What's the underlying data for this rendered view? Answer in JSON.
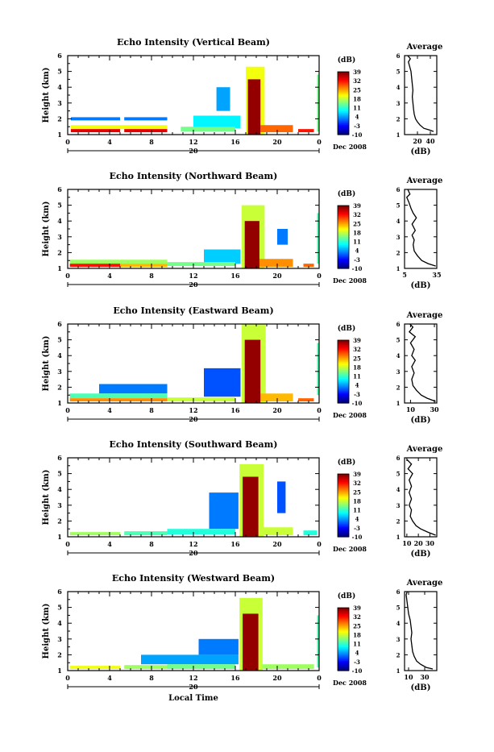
{
  "chart_data": [
    {
      "type": "heatmap",
      "title": "Echo Intensity (Vertical Beam)",
      "ylabel": "Height (km)",
      "ylim": [
        1,
        6
      ],
      "y_ticks": [
        "1",
        "2",
        "3",
        "4",
        "5",
        "6"
      ],
      "x_ticks": [
        "0",
        "4",
        "8",
        "12",
        "16",
        "20",
        "0"
      ],
      "xlim": [
        0,
        24
      ],
      "date_marker": "20",
      "date_label": "Dec 2008",
      "colorbar": {
        "unit": "(dB)",
        "ticks": [
          "39",
          "32",
          "25",
          "18",
          "11",
          "4",
          "-3",
          "-10"
        ]
      },
      "average": {
        "title": "Average",
        "xlabel": "(dB)",
        "xlim": [
          0,
          50
        ],
        "x_ticks": [
          "20",
          "40"
        ],
        "profile": [
          [
            45,
            1.2
          ],
          [
            38,
            1.3
          ],
          [
            30,
            1.4
          ],
          [
            24,
            1.6
          ],
          [
            20,
            1.8
          ],
          [
            17,
            2.0
          ],
          [
            15,
            2.3
          ],
          [
            14,
            2.6
          ],
          [
            13,
            3.0
          ],
          [
            12,
            3.4
          ],
          [
            13,
            3.8
          ],
          [
            12,
            4.2
          ],
          [
            11,
            4.6
          ],
          [
            10,
            5.0
          ],
          [
            8,
            5.3
          ],
          [
            6,
            5.6
          ],
          [
            9,
            5.8
          ],
          [
            5,
            6.0
          ]
        ]
      },
      "bands": [
        {
          "t0": 0.3,
          "t1": 5.0,
          "h0": 1.15,
          "h1": 1.35,
          "level": 34
        },
        {
          "t0": 5.4,
          "t1": 9.5,
          "h0": 1.15,
          "h1": 1.35,
          "level": 34
        },
        {
          "t0": 10.8,
          "t1": 16.0,
          "h0": 1.2,
          "h1": 1.5,
          "level": 14
        },
        {
          "t0": 0.3,
          "t1": 9.5,
          "h0": 1.35,
          "h1": 1.6,
          "level": 20
        },
        {
          "t0": 12.0,
          "t1": 16.5,
          "h0": 1.4,
          "h1": 2.2,
          "level": 8
        },
        {
          "t0": 17.2,
          "t1": 18.4,
          "h0": 1.0,
          "h1": 4.5,
          "level": 38
        },
        {
          "t0": 17.0,
          "t1": 18.8,
          "h0": 1.0,
          "h1": 5.3,
          "level": 20
        },
        {
          "t0": 18.4,
          "t1": 21.5,
          "h0": 1.15,
          "h1": 1.6,
          "level": 28
        },
        {
          "t0": 22.0,
          "t1": 23.5,
          "h0": 1.15,
          "h1": 1.35,
          "level": 32
        },
        {
          "t0": 0.3,
          "t1": 5.0,
          "h0": 1.9,
          "h1": 2.1,
          "level": 2
        },
        {
          "t0": 5.4,
          "t1": 9.5,
          "h0": 1.9,
          "h1": 2.1,
          "level": 2
        },
        {
          "t0": 14.2,
          "t1": 15.5,
          "h0": 2.5,
          "h1": 4.0,
          "level": 4
        },
        {
          "t0": 23.8,
          "t1": 24.0,
          "h0": 1.2,
          "h1": 4.8,
          "level": 14
        }
      ]
    },
    {
      "type": "heatmap",
      "title": "Echo Intensity (Northward Beam)",
      "ylabel": "Height (km)",
      "ylim": [
        1,
        6
      ],
      "y_ticks": [
        "1",
        "2",
        "3",
        "4",
        "5",
        "6"
      ],
      "x_ticks": [
        "0",
        "4",
        "8",
        "12",
        "16",
        "20",
        "0"
      ],
      "xlim": [
        0,
        24
      ],
      "date_marker": "20",
      "date_label": "Dec 2008",
      "colorbar": {
        "unit": "(dB)",
        "ticks": [
          "39",
          "32",
          "25",
          "18",
          "11",
          "4",
          "-3",
          "-10"
        ]
      },
      "average": {
        "title": "Average",
        "xlabel": "(dB)",
        "xlim": [
          5,
          35
        ],
        "x_ticks": [
          "5",
          "35"
        ],
        "profile": [
          [
            34,
            1.15
          ],
          [
            27,
            1.3
          ],
          [
            21,
            1.5
          ],
          [
            17,
            1.8
          ],
          [
            14,
            2.1
          ],
          [
            13,
            2.5
          ],
          [
            14,
            2.8
          ],
          [
            12,
            3.1
          ],
          [
            15,
            3.4
          ],
          [
            12,
            3.8
          ],
          [
            16,
            4.2
          ],
          [
            13,
            4.5
          ],
          [
            11,
            4.8
          ],
          [
            9,
            5.2
          ],
          [
            7,
            5.5
          ],
          [
            10,
            5.7
          ],
          [
            8,
            6.0
          ]
        ]
      },
      "bands": [
        {
          "t0": 0.2,
          "t1": 5.0,
          "h0": 1.1,
          "h1": 1.3,
          "level": 32
        },
        {
          "t0": 5.0,
          "t1": 9.5,
          "h0": 1.1,
          "h1": 1.3,
          "level": 24
        },
        {
          "t0": 9.5,
          "t1": 16.0,
          "h0": 1.15,
          "h1": 1.4,
          "level": 14
        },
        {
          "t0": 0.2,
          "t1": 9.5,
          "h0": 1.3,
          "h1": 1.55,
          "level": 16
        },
        {
          "t0": 13.0,
          "t1": 16.5,
          "h0": 1.3,
          "h1": 2.2,
          "level": 6
        },
        {
          "t0": 16.9,
          "t1": 18.3,
          "h0": 1.0,
          "h1": 4.0,
          "level": 38
        },
        {
          "t0": 16.6,
          "t1": 18.8,
          "h0": 1.0,
          "h1": 5.0,
          "level": 18
        },
        {
          "t0": 18.3,
          "t1": 21.5,
          "h0": 1.1,
          "h1": 1.6,
          "level": 26
        },
        {
          "t0": 22.5,
          "t1": 23.5,
          "h0": 1.1,
          "h1": 1.3,
          "level": 28
        },
        {
          "t0": 20.0,
          "t1": 21.0,
          "h0": 2.5,
          "h1": 3.5,
          "level": 2
        },
        {
          "t0": 23.8,
          "t1": 24.0,
          "h0": 1.3,
          "h1": 4.5,
          "level": 12
        }
      ]
    },
    {
      "type": "heatmap",
      "title": "Echo Intensity (Eastward Beam)",
      "ylabel": "Height (km)",
      "ylim": [
        1,
        6
      ],
      "y_ticks": [
        "1",
        "2",
        "3",
        "4",
        "5",
        "6"
      ],
      "x_ticks": [
        "0",
        "4",
        "8",
        "12",
        "16",
        "20",
        "0"
      ],
      "xlim": [
        0,
        24
      ],
      "date_marker": "20",
      "date_label": "Dec 2008",
      "colorbar": {
        "unit": "(dB)",
        "ticks": [
          "39",
          "32",
          "25",
          "18",
          "11",
          "4",
          "-3",
          "-10"
        ]
      },
      "average": {
        "title": "Average",
        "xlabel": "(dB)",
        "xlim": [
          5,
          32
        ],
        "x_ticks": [
          "10",
          "30"
        ],
        "profile": [
          [
            31,
            1.1
          ],
          [
            24,
            1.3
          ],
          [
            19,
            1.5
          ],
          [
            15,
            1.8
          ],
          [
            12,
            2.1
          ],
          [
            11,
            2.5
          ],
          [
            13,
            2.9
          ],
          [
            11,
            3.3
          ],
          [
            14,
            3.7
          ],
          [
            11,
            4.0
          ],
          [
            13,
            4.4
          ],
          [
            10,
            4.8
          ],
          [
            14,
            5.2
          ],
          [
            9,
            5.5
          ],
          [
            12,
            5.8
          ],
          [
            7,
            6.2
          ],
          [
            10,
            6.5
          ],
          [
            6,
            6.8
          ]
        ]
      },
      "bands": [
        {
          "t0": 0.2,
          "t1": 9.5,
          "h0": 1.1,
          "h1": 1.3,
          "level": 26
        },
        {
          "t0": 9.5,
          "t1": 16.0,
          "h0": 1.1,
          "h1": 1.35,
          "level": 18
        },
        {
          "t0": 0.2,
          "t1": 9.5,
          "h0": 1.3,
          "h1": 1.6,
          "level": 12
        },
        {
          "t0": 3.0,
          "t1": 9.5,
          "h0": 1.6,
          "h1": 2.2,
          "level": 2
        },
        {
          "t0": 13.0,
          "t1": 16.5,
          "h0": 1.4,
          "h1": 3.2,
          "level": 0
        },
        {
          "t0": 16.9,
          "t1": 18.4,
          "h0": 1.0,
          "h1": 5.0,
          "level": 38
        },
        {
          "t0": 16.6,
          "t1": 18.9,
          "h0": 1.0,
          "h1": 6.0,
          "level": 18
        },
        {
          "t0": 18.4,
          "t1": 21.5,
          "h0": 1.1,
          "h1": 1.6,
          "level": 24
        },
        {
          "t0": 22.0,
          "t1": 23.5,
          "h0": 1.1,
          "h1": 1.3,
          "level": 28
        },
        {
          "t0": 23.8,
          "t1": 24.0,
          "h0": 1.5,
          "h1": 4.8,
          "level": 12
        }
      ]
    },
    {
      "type": "heatmap",
      "title": "Echo Intensity (Southward Beam)",
      "ylabel": "Height (km)",
      "ylim": [
        1,
        6
      ],
      "y_ticks": [
        "1",
        "2",
        "3",
        "4",
        "5",
        "6"
      ],
      "x_ticks": [
        "0",
        "4",
        "8",
        "12",
        "16",
        "20",
        "0"
      ],
      "xlim": [
        0,
        24
      ],
      "date_marker": "20",
      "date_label": "Dec 2008",
      "colorbar": {
        "unit": "(dB)",
        "ticks": [
          "39",
          "32",
          "25",
          "18",
          "11",
          "4",
          "-3",
          "-10"
        ]
      },
      "average": {
        "title": "Average",
        "xlabel": "(dB)",
        "xlim": [
          8,
          36
        ],
        "x_ticks": [
          "10",
          "20",
          "30"
        ],
        "profile": [
          [
            35,
            1.1
          ],
          [
            28,
            1.3
          ],
          [
            22,
            1.5
          ],
          [
            18,
            1.7
          ],
          [
            15,
            2.0
          ],
          [
            13,
            2.3
          ],
          [
            14,
            2.7
          ],
          [
            12,
            3.0
          ],
          [
            14,
            3.4
          ],
          [
            12,
            3.8
          ],
          [
            14,
            4.2
          ],
          [
            12,
            4.6
          ],
          [
            15,
            5.0
          ],
          [
            11,
            5.3
          ],
          [
            14,
            5.6
          ],
          [
            10,
            5.9
          ]
        ]
      },
      "bands": [
        {
          "t0": 0.2,
          "t1": 5.0,
          "h0": 1.1,
          "h1": 1.3,
          "level": 16
        },
        {
          "t0": 5.4,
          "t1": 9.5,
          "h0": 1.1,
          "h1": 1.35,
          "level": 12
        },
        {
          "t0": 9.5,
          "t1": 16.0,
          "h0": 1.15,
          "h1": 1.5,
          "level": 10
        },
        {
          "t0": 13.5,
          "t1": 16.3,
          "h0": 1.5,
          "h1": 3.8,
          "level": 2
        },
        {
          "t0": 16.7,
          "t1": 18.2,
          "h0": 1.0,
          "h1": 4.8,
          "level": 38
        },
        {
          "t0": 16.4,
          "t1": 18.7,
          "h0": 1.0,
          "h1": 5.6,
          "level": 18
        },
        {
          "t0": 18.2,
          "t1": 21.5,
          "h0": 1.1,
          "h1": 1.6,
          "level": 18
        },
        {
          "t0": 22.5,
          "t1": 23.8,
          "h0": 1.1,
          "h1": 1.4,
          "level": 10
        },
        {
          "t0": 20.0,
          "t1": 20.8,
          "h0": 2.5,
          "h1": 4.5,
          "level": 0
        }
      ]
    },
    {
      "type": "heatmap",
      "title": "Echo Intensity (Westward Beam)",
      "ylabel": "Height (km)",
      "ylim": [
        1,
        6
      ],
      "y_ticks": [
        "1",
        "2",
        "3",
        "4",
        "5",
        "6"
      ],
      "x_ticks": [
        "0",
        "4",
        "8",
        "12",
        "16",
        "20",
        "0"
      ],
      "xlim": [
        0,
        24
      ],
      "date_marker": "20",
      "date_label": "Dec 2008",
      "xlabel": "Local Time",
      "colorbar": {
        "unit": "(dB)",
        "ticks": [
          "39",
          "32",
          "25",
          "18",
          "11",
          "4",
          "-3",
          "-10"
        ]
      },
      "average": {
        "title": "Average",
        "xlabel": "(dB)",
        "xlim": [
          5,
          45
        ],
        "x_ticks": [
          "10",
          "30"
        ],
        "profile": [
          [
            40,
            1.1
          ],
          [
            32,
            1.2
          ],
          [
            25,
            1.4
          ],
          [
            20,
            1.6
          ],
          [
            17,
            1.9
          ],
          [
            15,
            2.2
          ],
          [
            14,
            2.6
          ],
          [
            13,
            3.0
          ],
          [
            14,
            3.4
          ],
          [
            13,
            3.8
          ],
          [
            12,
            4.2
          ],
          [
            10,
            4.6
          ],
          [
            9,
            5.0
          ],
          [
            8,
            5.4
          ],
          [
            7,
            5.8
          ],
          [
            9,
            6.1
          ],
          [
            6,
            6.4
          ]
        ]
      },
      "bands": [
        {
          "t0": 0.2,
          "t1": 5.0,
          "h0": 1.1,
          "h1": 1.3,
          "level": 20
        },
        {
          "t0": 5.4,
          "t1": 9.5,
          "h0": 1.1,
          "h1": 1.35,
          "level": 16
        },
        {
          "t0": 9.5,
          "t1": 16.0,
          "h0": 1.1,
          "h1": 1.4,
          "level": 14
        },
        {
          "t0": 7.0,
          "t1": 16.3,
          "h0": 1.4,
          "h1": 2.0,
          "level": 4
        },
        {
          "t0": 12.5,
          "t1": 16.3,
          "h0": 2.0,
          "h1": 3.0,
          "level": 2
        },
        {
          "t0": 16.7,
          "t1": 18.2,
          "h0": 1.0,
          "h1": 4.6,
          "level": 38
        },
        {
          "t0": 16.4,
          "t1": 18.6,
          "h0": 1.0,
          "h1": 5.6,
          "level": 18
        },
        {
          "t0": 18.2,
          "t1": 23.5,
          "h0": 1.1,
          "h1": 1.4,
          "level": 16
        },
        {
          "t0": 23.8,
          "t1": 24.0,
          "h0": 1.2,
          "h1": 4.5,
          "level": 12
        }
      ]
    }
  ]
}
